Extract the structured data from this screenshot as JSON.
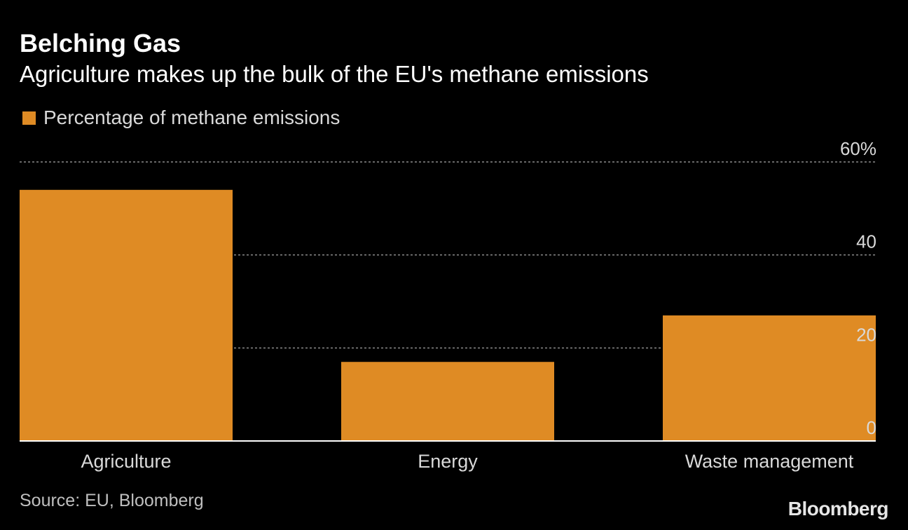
{
  "title": "Belching Gas",
  "subtitle": "Agriculture makes up the bulk of the EU's methane emissions",
  "source": "Source: EU, Bloomberg",
  "logo": "Bloomberg",
  "colors": {
    "background": "#000000",
    "bar": "#df8b24",
    "gridline": "#8a8a8a",
    "axis": "#ffffff",
    "label": "#d9d9d9"
  },
  "chart_data": {
    "type": "bar",
    "categories": [
      "Agriculture",
      "Energy",
      "Waste management"
    ],
    "series": [
      {
        "name": "Percentage of methane emissions",
        "values": [
          54,
          17,
          27
        ]
      }
    ],
    "ylim": [
      0,
      60
    ],
    "yticks": [
      0,
      20,
      40,
      60
    ],
    "ytick_labels": [
      "0",
      "20",
      "40",
      "60%"
    ],
    "xlabel": "",
    "ylabel": "",
    "grid": true,
    "yaxis_position": "right",
    "legend_position": "top-left"
  }
}
